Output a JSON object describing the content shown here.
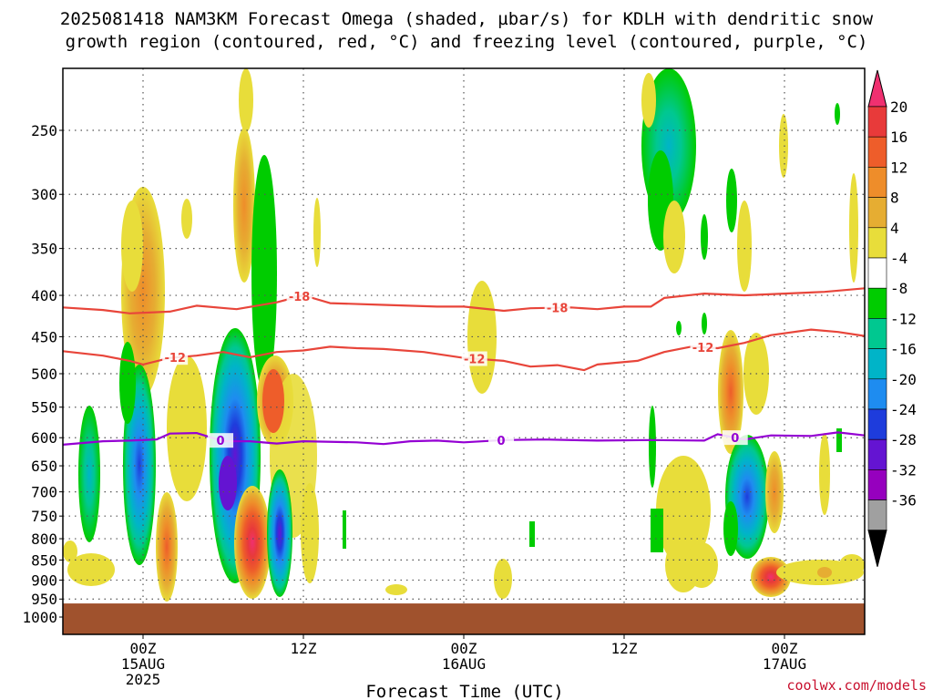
{
  "title_line1": "2025081418 NAM3KM Forecast Omega (shaded, µbar/s) for KDLH with dendritic snow",
  "title_line2": "growth region (contoured, red, °C) and freezing level (contoured, purple, °C)",
  "credit": "coolwx.com/models",
  "chart_data": {
    "type": "heatmap",
    "title": "2025081418 NAM3KM Forecast Omega (shaded, µbar/s) for KDLH with dendritic snow growth region (contoured, red, °C) and freezing level (contoured, purple, °C)",
    "xlabel": "Forecast Time (UTC)",
    "ylabel": "",
    "x_unit": "forecast hour from 2025-08-14 18Z",
    "xlim": [
      0,
      60
    ],
    "ylim_hpa": [
      1050,
      200
    ],
    "y_scale": "log-pressure, inverted",
    "grid": true,
    "x_ticks": [
      {
        "x": 6,
        "label": [
          "00Z",
          "15AUG",
          "2025"
        ]
      },
      {
        "x": 18,
        "label": [
          "12Z"
        ]
      },
      {
        "x": 30,
        "label": [
          "00Z",
          "16AUG"
        ]
      },
      {
        "x": 42,
        "label": [
          "12Z"
        ]
      },
      {
        "x": 54,
        "label": [
          "00Z",
          "17AUG"
        ]
      }
    ],
    "y_ticks": [
      250,
      300,
      350,
      400,
      450,
      500,
      550,
      600,
      650,
      700,
      750,
      800,
      850,
      900,
      950,
      1000
    ],
    "colorbar": {
      "labels": [
        "20",
        "16",
        "12",
        "8",
        "4",
        "-4",
        "-8",
        "-12",
        "-16",
        "-20",
        "-24",
        "-28",
        "-32",
        "-36"
      ],
      "colors": [
        "#f03070",
        "#e83a3a",
        "#ee5d2a",
        "#ee8d2a",
        "#e6ad32",
        "#e8dd3a",
        "#ffffff",
        "#00cc00",
        "#00c890",
        "#00b4c8",
        "#1e8cf0",
        "#1e3cdc",
        "#6414d2",
        "#9600be",
        "#a0a0a0",
        "#000000"
      ]
    },
    "terrain_surface_hpa": 962,
    "contours": [
      {
        "name": "-18",
        "color": "#e8453a",
        "label_x": [
          17.7,
          37.0
        ],
        "points": [
          [
            0,
            414
          ],
          [
            3,
            417
          ],
          [
            5,
            421
          ],
          [
            8,
            419
          ],
          [
            10,
            412
          ],
          [
            13,
            416
          ],
          [
            16,
            408
          ],
          [
            18,
            400
          ],
          [
            20,
            409
          ],
          [
            24,
            411
          ],
          [
            28,
            413
          ],
          [
            30,
            413
          ],
          [
            33,
            418
          ],
          [
            35,
            415
          ],
          [
            38,
            414
          ],
          [
            40,
            416
          ],
          [
            42,
            413
          ],
          [
            44,
            413
          ],
          [
            45,
            403
          ],
          [
            48,
            398
          ],
          [
            51,
            400
          ],
          [
            54,
            398
          ],
          [
            57,
            396
          ],
          [
            60,
            392
          ]
        ]
      },
      {
        "name": "-12",
        "color": "#e8453a",
        "label_x": [
          8.4,
          30.8,
          47.9
        ],
        "points": [
          [
            0,
            469
          ],
          [
            3,
            475
          ],
          [
            5,
            482
          ],
          [
            6,
            487
          ],
          [
            8,
            478
          ],
          [
            10,
            475
          ],
          [
            12,
            470
          ],
          [
            14,
            477
          ],
          [
            16,
            470
          ],
          [
            18,
            468
          ],
          [
            20,
            463
          ],
          [
            22,
            465
          ],
          [
            24,
            466
          ],
          [
            27,
            470
          ],
          [
            30,
            478
          ],
          [
            33,
            482
          ],
          [
            35,
            490
          ],
          [
            37,
            488
          ],
          [
            39,
            495
          ],
          [
            40,
            487
          ],
          [
            43,
            482
          ],
          [
            45,
            470
          ],
          [
            47,
            463
          ],
          [
            49,
            465
          ],
          [
            51,
            458
          ],
          [
            53,
            448
          ],
          [
            56,
            441
          ],
          [
            58,
            444
          ],
          [
            60,
            449
          ]
        ]
      },
      {
        "name": "0",
        "color": "#9400d3",
        "label_x": [
          11.8,
          32.8,
          50.3
        ],
        "points": [
          [
            0,
            612
          ],
          [
            3,
            606
          ],
          [
            5,
            605
          ],
          [
            7,
            603
          ],
          [
            8,
            593
          ],
          [
            10,
            592
          ],
          [
            12,
            606
          ],
          [
            14,
            606
          ],
          [
            16,
            610
          ],
          [
            18,
            606
          ],
          [
            22,
            608
          ],
          [
            24,
            611
          ],
          [
            26,
            606
          ],
          [
            28,
            605
          ],
          [
            30,
            608
          ],
          [
            33,
            604
          ],
          [
            36,
            603
          ],
          [
            40,
            605
          ],
          [
            44,
            604
          ],
          [
            48,
            605
          ],
          [
            49,
            594
          ],
          [
            51,
            603
          ],
          [
            53,
            596
          ],
          [
            56,
            597
          ],
          [
            58,
            591
          ],
          [
            60,
            596
          ]
        ]
      }
    ],
    "omega_features": [
      {
        "x": 7.5,
        "p_top": 240,
        "p_bot": 420,
        "peak": 8
      },
      {
        "x": 6.1,
        "p_top": 480,
        "p_bot": 760,
        "peak": -20
      },
      {
        "x": 2.0,
        "p_top": 560,
        "p_bot": 780,
        "peak": -8
      },
      {
        "x": 8.5,
        "p_top": 600,
        "p_bot": 900,
        "peak": 12
      },
      {
        "x": 13.5,
        "p_top": 220,
        "p_bot": 300,
        "peak": 8
      },
      {
        "x": 15.0,
        "p_top": 260,
        "p_bot": 460,
        "peak": -8
      },
      {
        "x": 12.8,
        "p_top": 600,
        "p_bot": 800,
        "peak": -24
      },
      {
        "x": 13.9,
        "p_top": 700,
        "p_bot": 930,
        "peak": 20
      },
      {
        "x": 15.8,
        "p_top": 500,
        "p_bot": 650,
        "peak": 12
      },
      {
        "x": 16.0,
        "p_top": 660,
        "p_bot": 890,
        "peak": -24
      },
      {
        "x": 30.8,
        "p_top": 380,
        "p_bot": 540,
        "peak": 4
      },
      {
        "x": 45.0,
        "p_top": 190,
        "p_bot": 360,
        "peak": -16
      },
      {
        "x": 50.8,
        "p_top": 480,
        "p_bot": 600,
        "peak": 12
      },
      {
        "x": 51.0,
        "p_top": 640,
        "p_bot": 790,
        "peak": -20
      },
      {
        "x": 53.9,
        "p_top": 660,
        "p_bot": 900,
        "peak": 8
      },
      {
        "x": 53.7,
        "p_top": 870,
        "p_bot": 920,
        "peak": 16
      }
    ]
  }
}
